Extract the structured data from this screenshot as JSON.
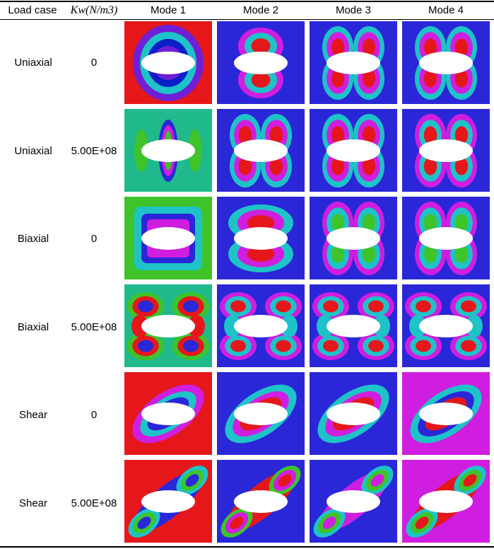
{
  "headers": {
    "load_case": "Load case",
    "kw": "Kw(N/m3)",
    "mode1": "Mode 1",
    "mode2": "Mode 2",
    "mode3": "Mode 3",
    "mode4": "Mode 4"
  },
  "rows": [
    {
      "load_case": "Uniaxial",
      "kw": "0",
      "modes": [
        {
          "bg": "#e5171b",
          "pattern": "ring",
          "colors": [
            "#6f1fd6",
            "#1ec3c7",
            "#0b1fc8"
          ]
        },
        {
          "bg": "#2a27d8",
          "pattern": "two-lobe-vertical",
          "colors": [
            "#d01ee0",
            "#1ec3c7",
            "#e5171b"
          ]
        },
        {
          "bg": "#2a27d8",
          "pattern": "four-lobe",
          "colors": [
            "#1ec3c7",
            "#d01ee0",
            "#e5171b"
          ]
        },
        {
          "bg": "#2a27d8",
          "pattern": "four-lobe",
          "colors": [
            "#1ec3c7",
            "#d01ee0",
            "#e5171b"
          ]
        }
      ]
    },
    {
      "load_case": "Uniaxial",
      "kw": "5.00E+08",
      "modes": [
        {
          "bg": "#1fb98c",
          "pattern": "vertical-stripes",
          "colors": [
            "#3fc32a",
            "#d01ee0",
            "#2a27d8"
          ]
        },
        {
          "bg": "#2a27d8",
          "pattern": "four-lobe",
          "colors": [
            "#1ec3c7",
            "#d01ee0",
            "#e5171b"
          ]
        },
        {
          "bg": "#2a27d8",
          "pattern": "four-lobe",
          "colors": [
            "#1ec3c7",
            "#d01ee0",
            "#e5171b"
          ]
        },
        {
          "bg": "#2a27d8",
          "pattern": "four-lobe",
          "colors": [
            "#d01ee0",
            "#1ec3c7",
            "#e5171b"
          ]
        }
      ]
    },
    {
      "load_case": "Biaxial",
      "kw": "0",
      "modes": [
        {
          "bg": "#3fc32a",
          "pattern": "rect-ring",
          "colors": [
            "#1ec3c7",
            "#2a27d8",
            "#d01ee0"
          ]
        },
        {
          "bg": "#2a27d8",
          "pattern": "two-lobe-horizontal",
          "colors": [
            "#1ec3c7",
            "#d01ee0",
            "#e5171b"
          ]
        },
        {
          "bg": "#2a27d8",
          "pattern": "four-lobe",
          "colors": [
            "#d01ee0",
            "#1ec3c7",
            "#3fc32a"
          ]
        },
        {
          "bg": "#2a27d8",
          "pattern": "four-lobe",
          "colors": [
            "#d01ee0",
            "#1ec3c7",
            "#3fc32a"
          ]
        }
      ]
    },
    {
      "load_case": "Biaxial",
      "kw": "5.00E+08",
      "modes": [
        {
          "bg": "#1fb98c",
          "pattern": "x-shape",
          "colors": [
            "#3fc32a",
            "#e5171b",
            "#2a27d8"
          ]
        },
        {
          "bg": "#2a27d8",
          "pattern": "x-shape",
          "colors": [
            "#d01ee0",
            "#1ec3c7",
            "#e5171b"
          ]
        },
        {
          "bg": "#2a27d8",
          "pattern": "x-shape",
          "colors": [
            "#d01ee0",
            "#1ec3c7",
            "#e5171b"
          ]
        },
        {
          "bg": "#2a27d8",
          "pattern": "x-shape",
          "colors": [
            "#d01ee0",
            "#1ec3c7",
            "#e5171b"
          ]
        }
      ]
    },
    {
      "load_case": "Shear",
      "kw": "0",
      "modes": [
        {
          "bg": "#e5171b",
          "pattern": "diagonal",
          "colors": [
            "#d01ee0",
            "#1ec3c7",
            "#2a27d8"
          ]
        },
        {
          "bg": "#2a27d8",
          "pattern": "diagonal",
          "colors": [
            "#1ec3c7",
            "#d01ee0",
            "#e5171b"
          ]
        },
        {
          "bg": "#2a27d8",
          "pattern": "diagonal",
          "colors": [
            "#1ec3c7",
            "#d01ee0",
            "#e5171b"
          ]
        },
        {
          "bg": "#d01ee0",
          "pattern": "diagonal",
          "colors": [
            "#1ec3c7",
            "#2a27d8",
            "#e5171b"
          ]
        }
      ]
    },
    {
      "load_case": "Shear",
      "kw": "5.00E+08",
      "modes": [
        {
          "bg": "#e5171b",
          "pattern": "diagonal-ends",
          "colors": [
            "#1ec3c7",
            "#3fc32a",
            "#2a27d8"
          ]
        },
        {
          "bg": "#2a27d8",
          "pattern": "diagonal-ends",
          "colors": [
            "#3fc32a",
            "#d01ee0",
            "#e5171b"
          ]
        },
        {
          "bg": "#2a27d8",
          "pattern": "diagonal-ends",
          "colors": [
            "#1ec3c7",
            "#3fc32a",
            "#d01ee0"
          ]
        },
        {
          "bg": "#d01ee0",
          "pattern": "diagonal-ends",
          "colors": [
            "#1ec3c7",
            "#3fc32a",
            "#e5171b"
          ]
        }
      ]
    }
  ]
}
